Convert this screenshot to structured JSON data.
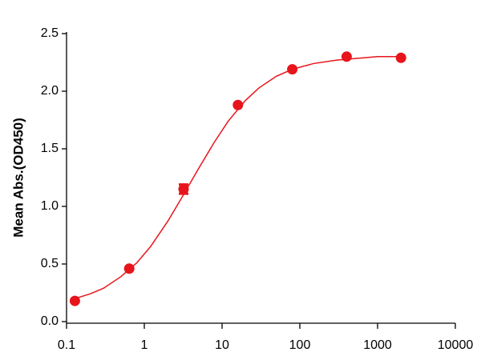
{
  "chart_data": {
    "type": "scatter",
    "ylabel": "Mean Abs.(OD450)",
    "x": [
      0.128,
      0.64,
      3.2,
      16,
      80,
      400,
      2000
    ],
    "values": [
      0.18,
      0.46,
      1.15,
      1.88,
      2.19,
      2.3,
      2.29
    ],
    "errors": [
      null,
      null,
      0.04,
      null,
      null,
      null,
      null
    ],
    "color": "#e8141b",
    "curve": {
      "x": [
        0.128,
        0.2,
        0.3,
        0.5,
        0.8,
        1.2,
        2,
        3,
        5,
        8,
        12,
        20,
        30,
        50,
        80,
        150,
        300,
        1000,
        2000
      ],
      "values": [
        0.2,
        0.24,
        0.29,
        0.39,
        0.51,
        0.65,
        0.87,
        1.07,
        1.33,
        1.56,
        1.74,
        1.92,
        2.03,
        2.13,
        2.19,
        2.24,
        2.27,
        2.3,
        2.3
      ]
    },
    "xscale": "log",
    "xlim": [
      0.1,
      10000
    ],
    "xticks": [
      0.1,
      1,
      10,
      100,
      1000,
      10000
    ],
    "ylim": [
      0,
      2.5
    ],
    "yticks": [
      {
        "value": 0,
        "label": "0.0"
      },
      0.5,
      {
        "value": 1,
        "label": "1.0"
      },
      1.5,
      {
        "value": 2,
        "label": "2.0"
      },
      2.5
    ]
  }
}
